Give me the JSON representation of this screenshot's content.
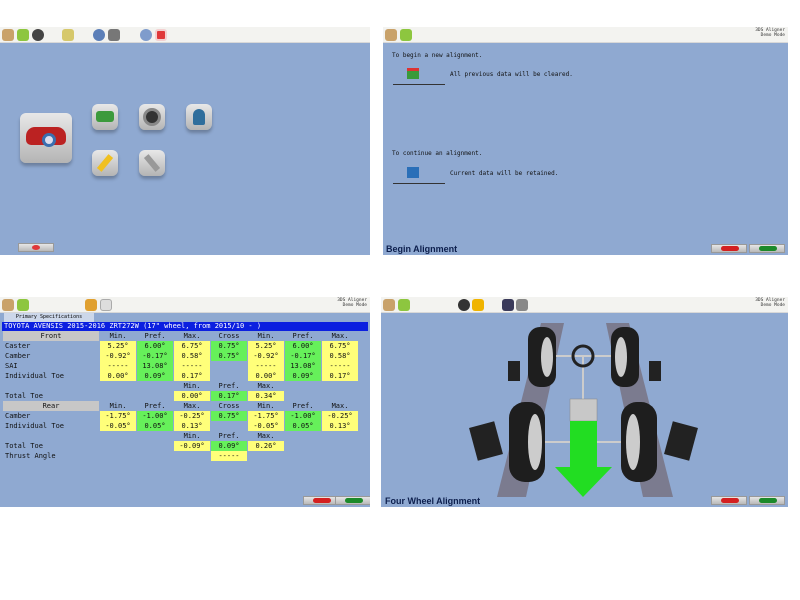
{
  "brand": {
    "line1": "3DS Aligner",
    "line2": "Demo Mode"
  },
  "colors": {
    "panel_bg": "#8fa9d1",
    "min_max": "#ffff7a",
    "pref_cross": "#66f05a",
    "title_bar": "#0b1fe0",
    "arrow": "#22dd22"
  },
  "main_menu": {
    "toolbar_icons": [
      "home-icon",
      "back-icon",
      "wheel-key-icon",
      "car-lift-icon",
      "calibration-icon",
      "gamepad-icon",
      "help-icon",
      "exit-icon"
    ],
    "tiles": [
      "vehicle-inspection-icon",
      "car-check-icon",
      "tire-icon",
      "customer-icon",
      "edit-icon",
      "tools-icon"
    ]
  },
  "begin": {
    "new_prompt": "To begin a new alignment.",
    "new_note": "All previous data will be cleared.",
    "continue_prompt": "To continue an alignment.",
    "continue_note": "Current data will be retained.",
    "title": "Begin Alignment"
  },
  "specs": {
    "tab": "Primary Specifications",
    "vehicle": "TOYOTA AVENSIS 2015-2016 ZRT272W (17\" wheel, from 2015/10 - )",
    "rows": [
      {
        "label": "Front",
        "hdr": true,
        "cells": [
          [
            "Min.",
            ""
          ],
          [
            "Pref.",
            ""
          ],
          [
            "Max.",
            ""
          ],
          [
            "Cross",
            ""
          ],
          [
            "Min.",
            ""
          ],
          [
            "Pref.",
            ""
          ],
          [
            "Max.",
            ""
          ]
        ]
      },
      {
        "label": "Caster",
        "cells": [
          [
            "5.25°",
            "y"
          ],
          [
            "6.00°",
            "g"
          ],
          [
            "6.75°",
            "y"
          ],
          [
            "0.75°",
            "g"
          ],
          [
            "5.25°",
            "y"
          ],
          [
            "6.00°",
            "g"
          ],
          [
            "6.75°",
            "y"
          ]
        ]
      },
      {
        "label": "Camber",
        "cells": [
          [
            "-0.92°",
            "y"
          ],
          [
            "-0.17°",
            "g"
          ],
          [
            "0.58°",
            "y"
          ],
          [
            "0.75°",
            "g"
          ],
          [
            "-0.92°",
            "y"
          ],
          [
            "-0.17°",
            "g"
          ],
          [
            "0.58°",
            "y"
          ]
        ]
      },
      {
        "label": "SAI",
        "cells": [
          [
            "-----",
            "y"
          ],
          [
            "13.08°",
            "g"
          ],
          [
            "-----",
            "y"
          ],
          [
            "",
            ""
          ],
          [
            "-----",
            "y"
          ],
          [
            "13.08°",
            "g"
          ],
          [
            "-----",
            "y"
          ]
        ]
      },
      {
        "label": "Individual Toe",
        "cells": [
          [
            "0.00°",
            "y"
          ],
          [
            "0.09°",
            "g"
          ],
          [
            "0.17°",
            "y"
          ],
          [
            "",
            ""
          ],
          [
            "0.00°",
            "y"
          ],
          [
            "0.09°",
            "g"
          ],
          [
            "0.17°",
            "y"
          ]
        ]
      },
      {
        "label": "",
        "cells": [
          [
            "",
            ""
          ],
          [
            "",
            ""
          ],
          [
            "Min.",
            ""
          ],
          [
            "Pref.",
            ""
          ],
          [
            "Max.",
            ""
          ],
          [
            "",
            ""
          ],
          [
            "",
            ""
          ]
        ]
      },
      {
        "label": "Total Toe",
        "cells": [
          [
            "",
            ""
          ],
          [
            "",
            ""
          ],
          [
            "0.00°",
            "y"
          ],
          [
            "0.17°",
            "g"
          ],
          [
            "0.34°",
            "y"
          ],
          [
            "",
            ""
          ],
          [
            "",
            ""
          ]
        ]
      },
      {
        "label": "Rear",
        "hdr": true,
        "cells": [
          [
            "Min.",
            ""
          ],
          [
            "Pref.",
            ""
          ],
          [
            "Max.",
            ""
          ],
          [
            "Cross",
            ""
          ],
          [
            "Min.",
            ""
          ],
          [
            "Pref.",
            ""
          ],
          [
            "Max.",
            ""
          ]
        ]
      },
      {
        "label": "Camber",
        "cells": [
          [
            "-1.75°",
            "y"
          ],
          [
            "-1.00°",
            "g"
          ],
          [
            "-0.25°",
            "y"
          ],
          [
            "0.75°",
            "g"
          ],
          [
            "-1.75°",
            "y"
          ],
          [
            "-1.00°",
            "g"
          ],
          [
            "-0.25°",
            "y"
          ]
        ]
      },
      {
        "label": "Individual Toe",
        "cells": [
          [
            "-0.05°",
            "y"
          ],
          [
            "0.05°",
            "g"
          ],
          [
            "0.13°",
            "y"
          ],
          [
            "",
            ""
          ],
          [
            "-0.05°",
            "y"
          ],
          [
            "0.05°",
            "g"
          ],
          [
            "0.13°",
            "y"
          ]
        ]
      },
      {
        "label": "",
        "cells": [
          [
            "",
            ""
          ],
          [
            "",
            ""
          ],
          [
            "Min.",
            ""
          ],
          [
            "Pref.",
            ""
          ],
          [
            "Max.",
            ""
          ],
          [
            "",
            ""
          ],
          [
            "",
            ""
          ]
        ]
      },
      {
        "label": "Total Toe",
        "cells": [
          [
            "",
            ""
          ],
          [
            "",
            ""
          ],
          [
            "-0.09°",
            "y"
          ],
          [
            "0.09°",
            "g"
          ],
          [
            "0.26°",
            "y"
          ],
          [
            "",
            ""
          ],
          [
            "",
            ""
          ]
        ]
      },
      {
        "label": "Thrust Angle",
        "cells": [
          [
            "",
            ""
          ],
          [
            "",
            ""
          ],
          [
            "",
            ""
          ],
          [
            "-----",
            "y"
          ],
          [
            "",
            ""
          ],
          [
            "",
            ""
          ],
          [
            "",
            ""
          ]
        ]
      }
    ]
  },
  "four_wheel": {
    "title": "Four Wheel Alignment"
  },
  "nav": {
    "back": "back-arrow-icon",
    "next": "next-arrow-icon"
  }
}
